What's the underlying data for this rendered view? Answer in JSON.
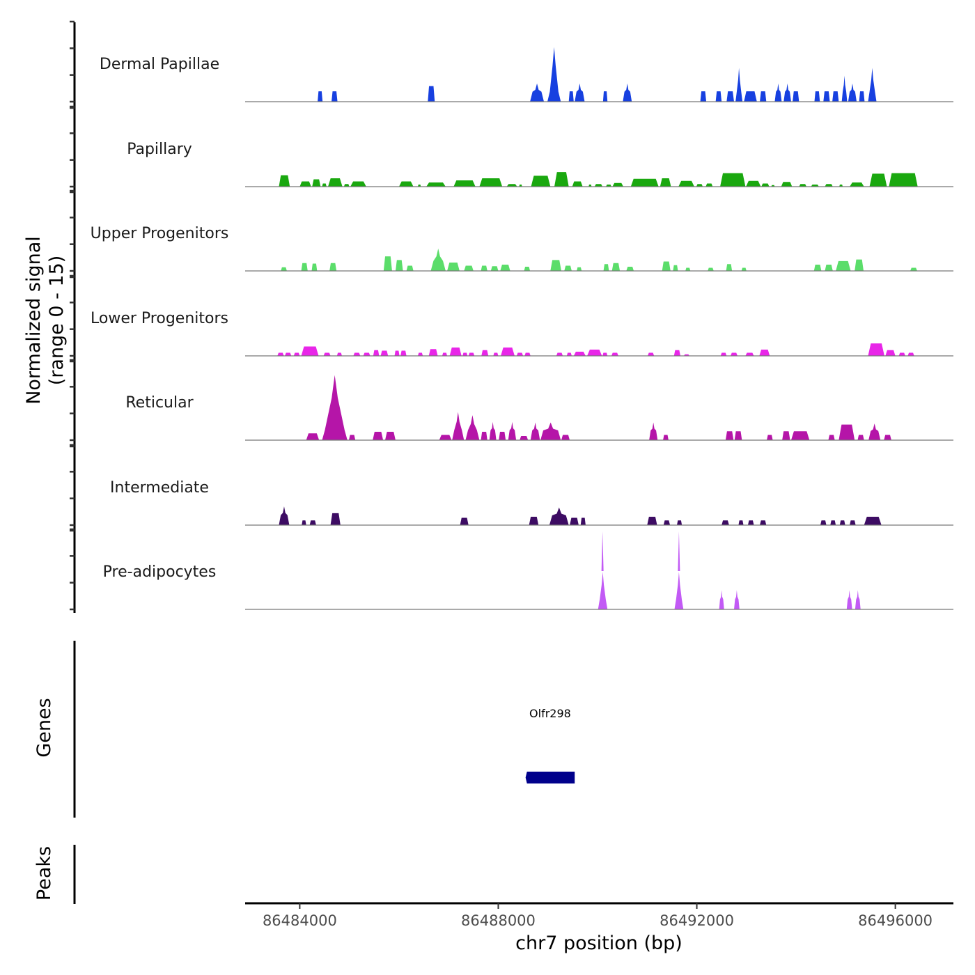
{
  "chart_data": {
    "type": "area",
    "title": "",
    "xlabel": "chr7 position (bp)",
    "ylabel": "Normalized signal\n(range 0 - 15)",
    "ylabel_lines": [
      "Normalized signal",
      "(range 0 - 15)"
    ],
    "ylim": [
      0,
      15
    ],
    "xlim": [
      86482900,
      86497170
    ],
    "x_ticks": [
      86484000,
      86488000,
      86492000,
      86496000
    ],
    "x_tick_labels": [
      "86484000",
      "86488000",
      "86492000",
      "86496000"
    ],
    "grid": false,
    "tracks": [
      {
        "name": "Dermal Papillae",
        "color": "#1740E0",
        "peaks": [
          [
            86484360,
            86484460,
            2
          ],
          [
            86484640,
            86484760,
            2
          ],
          [
            86486580,
            86486720,
            3
          ],
          [
            86488640,
            86488920,
            3.5
          ],
          [
            86488990,
            86489260,
            10.5
          ],
          [
            86489420,
            86489520,
            2
          ],
          [
            86489540,
            86489740,
            3.5
          ],
          [
            86490110,
            86490200,
            2
          ],
          [
            86490510,
            86490690,
            3.5
          ],
          [
            86492070,
            86492190,
            2
          ],
          [
            86492380,
            86492500,
            2
          ],
          [
            86492600,
            86492750,
            2
          ],
          [
            86492780,
            86492920,
            6.5
          ],
          [
            86492950,
            86493210,
            2
          ],
          [
            86493270,
            86493400,
            2
          ],
          [
            86493570,
            86493710,
            3.5
          ],
          [
            86493750,
            86493900,
            3.5
          ],
          [
            86493930,
            86494060,
            2
          ],
          [
            86494370,
            86494480,
            2
          ],
          [
            86494550,
            86494680,
            2
          ],
          [
            86494730,
            86494860,
            2
          ],
          [
            86494920,
            86495030,
            5
          ],
          [
            86495050,
            86495220,
            3.5
          ],
          [
            86495270,
            86495380,
            2
          ],
          [
            86495450,
            86495620,
            6.5
          ]
        ]
      },
      {
        "name": "Papillary",
        "color": "#1AA80F",
        "peaks": [
          [
            86483580,
            86483800,
            2.2
          ],
          [
            86484000,
            86484230,
            1
          ],
          [
            86484250,
            86484420,
            1.4
          ],
          [
            86484450,
            86484540,
            0.6
          ],
          [
            86484570,
            86484860,
            1.6
          ],
          [
            86484890,
            86485000,
            0.5
          ],
          [
            86485020,
            86485340,
            1
          ],
          [
            86486000,
            86486290,
            1
          ],
          [
            86486380,
            86486440,
            0.4
          ],
          [
            86486550,
            86486940,
            0.8
          ],
          [
            86487100,
            86487540,
            1.2
          ],
          [
            86487620,
            86488080,
            1.6
          ],
          [
            86488170,
            86488380,
            0.5
          ],
          [
            86488420,
            86488480,
            0.4
          ],
          [
            86488660,
            86489050,
            2.1
          ],
          [
            86489130,
            86489420,
            2.8
          ],
          [
            86489490,
            86489700,
            1
          ],
          [
            86489820,
            86489880,
            0.4
          ],
          [
            86489940,
            86490100,
            0.5
          ],
          [
            86490170,
            86490280,
            0.4
          ],
          [
            86490300,
            86490520,
            0.7
          ],
          [
            86490670,
            86491230,
            1.5
          ],
          [
            86491260,
            86491480,
            1.6
          ],
          [
            86491630,
            86491950,
            1.1
          ],
          [
            86491990,
            86492120,
            0.5
          ],
          [
            86492180,
            86492320,
            0.6
          ],
          [
            86492470,
            86492980,
            2.6
          ],
          [
            86492990,
            86493290,
            1.1
          ],
          [
            86493300,
            86493460,
            0.6
          ],
          [
            86493500,
            86493570,
            0.3
          ],
          [
            86493700,
            86493920,
            0.9
          ],
          [
            86494060,
            86494210,
            0.5
          ],
          [
            86494300,
            86494460,
            0.4
          ],
          [
            86494580,
            86494740,
            0.5
          ],
          [
            86494870,
            86494940,
            0.4
          ],
          [
            86495080,
            86495370,
            0.8
          ],
          [
            86495480,
            86495830,
            2.5
          ],
          [
            86495870,
            86496450,
            2.6
          ]
        ]
      },
      {
        "name": "Upper Progenitors",
        "color": "#5BDD6A",
        "peaks": [
          [
            86483620,
            86483740,
            0.7
          ],
          [
            86484030,
            86484160,
            1.5
          ],
          [
            86484240,
            86484350,
            1.4
          ],
          [
            86484600,
            86484740,
            1.5
          ],
          [
            86485690,
            86485860,
            2.8
          ],
          [
            86485930,
            86486080,
            2.1
          ],
          [
            86486150,
            86486290,
            1.0
          ],
          [
            86486640,
            86486940,
            4.3
          ],
          [
            86486970,
            86487220,
            1.6
          ],
          [
            86487310,
            86487500,
            1.0
          ],
          [
            86487650,
            86487780,
            1.0
          ],
          [
            86487850,
            86488000,
            0.9
          ],
          [
            86488040,
            86488240,
            1.2
          ],
          [
            86488520,
            86488640,
            0.8
          ],
          [
            86489050,
            86489270,
            2.1
          ],
          [
            86489330,
            86489480,
            1.0
          ],
          [
            86489580,
            86489680,
            0.7
          ],
          [
            86490120,
            86490230,
            1.3
          ],
          [
            86490290,
            86490450,
            1.5
          ],
          [
            86490580,
            86490730,
            0.8
          ],
          [
            86491300,
            86491470,
            1.8
          ],
          [
            86491520,
            86491620,
            1.1
          ],
          [
            86491770,
            86491870,
            0.6
          ],
          [
            86492220,
            86492340,
            0.6
          ],
          [
            86492590,
            86492710,
            1.3
          ],
          [
            86492900,
            86493000,
            0.6
          ],
          [
            86494360,
            86494510,
            1.2
          ],
          [
            86494580,
            86494740,
            1.2
          ],
          [
            86494800,
            86495100,
            1.9
          ],
          [
            86495180,
            86495360,
            2.2
          ],
          [
            86496300,
            86496440,
            0.6
          ]
        ]
      },
      {
        "name": "Lower Progenitors",
        "color": "#E826E8",
        "peaks": [
          [
            86483550,
            86483680,
            0.6
          ],
          [
            86483700,
            86483830,
            0.6
          ],
          [
            86483880,
            86484000,
            0.6
          ],
          [
            86484030,
            86484380,
            1.8
          ],
          [
            86484480,
            86484620,
            0.6
          ],
          [
            86484750,
            86484850,
            0.6
          ],
          [
            86485080,
            86485220,
            0.6
          ],
          [
            86485280,
            86485420,
            0.6
          ],
          [
            86485480,
            86485600,
            1.1
          ],
          [
            86485630,
            86485780,
            1.0
          ],
          [
            86485910,
            86486010,
            1.0
          ],
          [
            86486030,
            86486150,
            1.0
          ],
          [
            86486380,
            86486480,
            0.6
          ],
          [
            86486600,
            86486780,
            1.3
          ],
          [
            86486870,
            86486970,
            0.6
          ],
          [
            86487020,
            86487260,
            1.6
          ],
          [
            86487280,
            86487380,
            0.6
          ],
          [
            86487400,
            86487520,
            0.6
          ],
          [
            86487660,
            86487800,
            1.1
          ],
          [
            86487900,
            86488000,
            0.6
          ],
          [
            86488050,
            86488330,
            1.6
          ],
          [
            86488370,
            86488500,
            0.6
          ],
          [
            86488530,
            86488650,
            0.6
          ],
          [
            86489170,
            86489300,
            0.6
          ],
          [
            86489380,
            86489480,
            0.6
          ],
          [
            86489520,
            86489760,
            0.8
          ],
          [
            86489790,
            86490090,
            1.2
          ],
          [
            86490100,
            86490200,
            0.6
          ],
          [
            86490280,
            86490420,
            0.6
          ],
          [
            86491010,
            86491140,
            0.6
          ],
          [
            86491540,
            86491670,
            1.1
          ],
          [
            86491740,
            86491850,
            0.3
          ],
          [
            86492480,
            86492600,
            0.6
          ],
          [
            86492680,
            86492820,
            0.6
          ],
          [
            86492980,
            86493150,
            0.6
          ],
          [
            86493260,
            86493470,
            1.2
          ],
          [
            86495450,
            86495780,
            2.4
          ],
          [
            86495800,
            86496000,
            1.1
          ],
          [
            86496070,
            86496200,
            0.6
          ],
          [
            86496250,
            86496380,
            0.6
          ]
        ]
      },
      {
        "name": "Reticular",
        "color": "#B515A8",
        "peaks": [
          [
            86484130,
            86484390,
            1.3
          ],
          [
            86484450,
            86484960,
            12.5
          ],
          [
            86484990,
            86485120,
            1.0
          ],
          [
            86485470,
            86485680,
            1.6
          ],
          [
            86485720,
            86485930,
            1.6
          ],
          [
            86486810,
            86487060,
            1.0
          ],
          [
            86487070,
            86487310,
            5.4
          ],
          [
            86487340,
            86487620,
            4.8
          ],
          [
            86487650,
            86487780,
            1.6
          ],
          [
            86487820,
            86487960,
            3.5
          ],
          [
            86488010,
            86488150,
            1.6
          ],
          [
            86488200,
            86488360,
            3.5
          ],
          [
            86488430,
            86488600,
            0.8
          ],
          [
            86488650,
            86488840,
            3.4
          ],
          [
            86488850,
            86489260,
            3.4
          ],
          [
            86489270,
            86489440,
            1.0
          ],
          [
            86491040,
            86491210,
            3.4
          ],
          [
            86491320,
            86491430,
            1.0
          ],
          [
            86492580,
            86492740,
            1.7
          ],
          [
            86492760,
            86492910,
            1.7
          ],
          [
            86493410,
            86493530,
            1.0
          ],
          [
            86493720,
            86493880,
            1.7
          ],
          [
            86493900,
            86494270,
            1.7
          ],
          [
            86494650,
            86494780,
            1.0
          ],
          [
            86494860,
            86495180,
            3.0
          ],
          [
            86495240,
            86495370,
            1.0
          ],
          [
            86495460,
            86495700,
            3.2
          ],
          [
            86495770,
            86495920,
            1.0
          ]
        ]
      },
      {
        "name": "Intermediate",
        "color": "#3D0C63",
        "peaks": [
          [
            86483580,
            86483790,
            3.6
          ],
          [
            86484040,
            86484130,
            0.9
          ],
          [
            86484200,
            86484330,
            0.9
          ],
          [
            86484620,
            86484820,
            2.3
          ],
          [
            86487230,
            86487400,
            1.4
          ],
          [
            86488620,
            86488810,
            1.6
          ],
          [
            86489030,
            86489420,
            3.4
          ],
          [
            86489440,
            86489620,
            1.4
          ],
          [
            86489660,
            86489760,
            1.4
          ],
          [
            86491000,
            86491200,
            1.6
          ],
          [
            86491330,
            86491460,
            0.9
          ],
          [
            86491600,
            86491700,
            0.9
          ],
          [
            86492500,
            86492650,
            0.9
          ],
          [
            86492840,
            86492940,
            0.9
          ],
          [
            86493030,
            86493150,
            0.9
          ],
          [
            86493270,
            86493400,
            0.9
          ],
          [
            86494490,
            86494610,
            0.9
          ],
          [
            86494690,
            86494800,
            0.9
          ],
          [
            86494880,
            86494990,
            0.9
          ],
          [
            86495080,
            86495200,
            0.9
          ],
          [
            86495370,
            86495720,
            1.6
          ]
        ]
      },
      {
        "name": "Pre-adipocytes",
        "color": "#C25AF5",
        "peaks": [
          [
            86490010,
            86490200,
            7.2
          ],
          [
            86491550,
            86491730,
            7.2
          ],
          [
            86492450,
            86492550,
            3.7
          ],
          [
            86492750,
            86492860,
            3.7
          ],
          [
            86495020,
            86495130,
            3.7
          ],
          [
            86495190,
            86495300,
            3.7
          ]
        ],
        "spikes": [
          [
            86490100,
            15
          ],
          [
            86491640,
            15
          ]
        ]
      }
    ],
    "genes_track": {
      "label": "Genes",
      "genes": [
        {
          "name": "Olfr298",
          "start": 86488550,
          "end": 86489540,
          "strand": "-",
          "color": "#00008B"
        }
      ]
    },
    "peaks_track": {
      "label": "Peaks",
      "peaks": []
    }
  }
}
